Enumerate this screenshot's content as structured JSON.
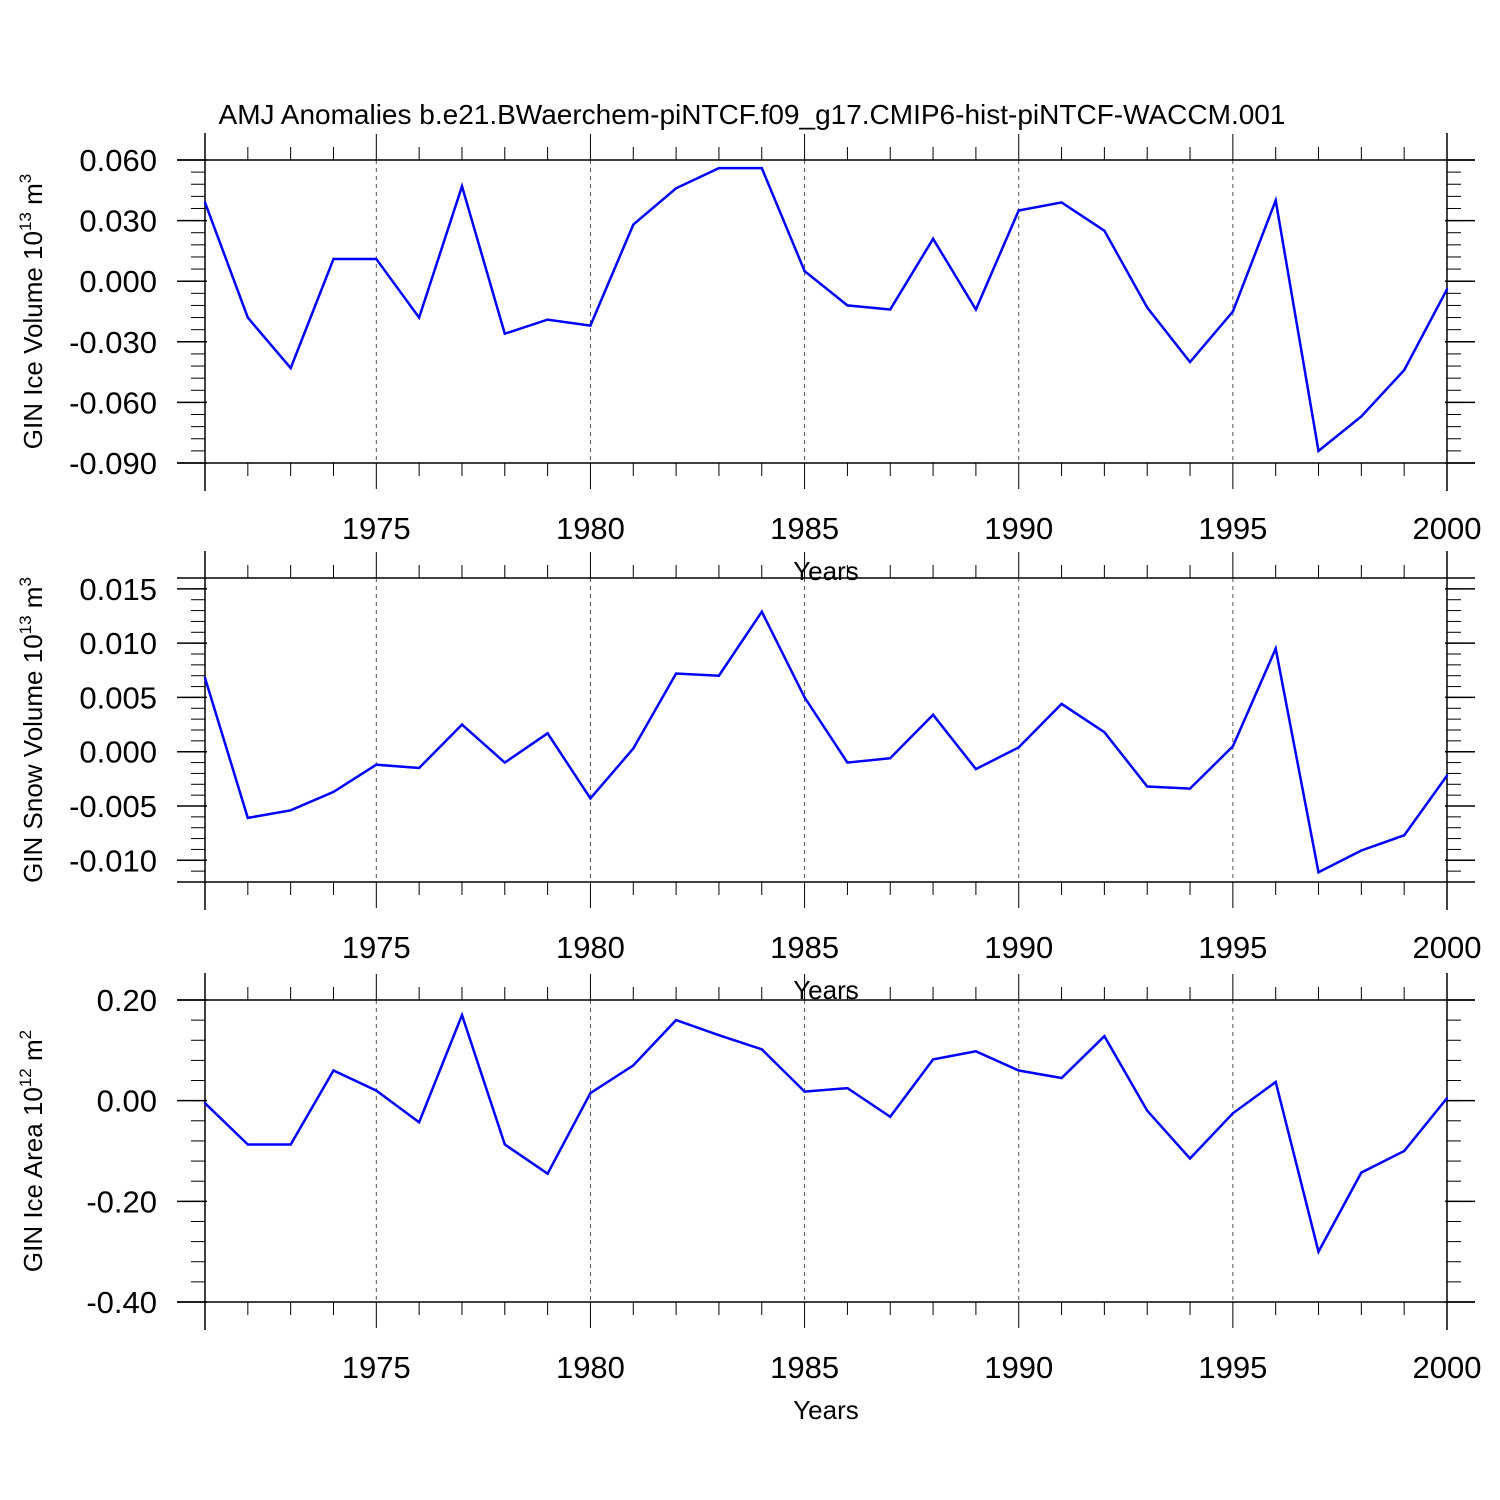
{
  "title": "AMJ Anomalies b.e21.BWaerchem-piNTCF.f09_g17.CMIP6-hist-piNTCF-WACCM.001",
  "colors": {
    "line": "#0000ff",
    "axis": "#000000",
    "grid": "#555555"
  },
  "chart_data": [
    {
      "type": "line",
      "ylabel": "GIN Ice Volume 10",
      "ylabel_exp": "13",
      "ylabel_unit": " m",
      "ylabel_unit_exp": "3",
      "xlabel": "Years",
      "xlim": [
        1971,
        2000
      ],
      "ylim": [
        -0.09,
        0.06
      ],
      "yticks": [
        0.06,
        0.03,
        0.0,
        -0.03,
        -0.06,
        -0.09
      ],
      "ytick_labels": [
        "0.060",
        "0.030",
        "0.000",
        "-0.030",
        "-0.060",
        "-0.090"
      ],
      "xticks": [
        1975,
        1980,
        1985,
        1990,
        1995,
        2000
      ],
      "xtick_labels": [
        "1975",
        "1980",
        "1985",
        "1990",
        "1995",
        "2000"
      ],
      "x": [
        1971,
        1972,
        1973,
        1974,
        1975,
        1976,
        1977,
        1978,
        1979,
        1980,
        1981,
        1982,
        1983,
        1984,
        1985,
        1986,
        1987,
        1988,
        1989,
        1990,
        1991,
        1992,
        1993,
        1994,
        1995,
        1996,
        1997,
        1998,
        1999,
        2000
      ],
      "values": [
        0.039,
        -0.018,
        -0.043,
        0.011,
        0.011,
        -0.018,
        0.047,
        -0.026,
        -0.019,
        -0.022,
        0.028,
        0.046,
        0.056,
        0.056,
        0.005,
        -0.012,
        -0.014,
        0.021,
        -0.014,
        0.035,
        0.039,
        0.025,
        -0.013,
        -0.04,
        -0.015,
        0.04,
        -0.084,
        -0.067,
        -0.044,
        -0.004
      ]
    },
    {
      "type": "line",
      "ylabel": "GIN Snow Volume 10",
      "ylabel_exp": "13",
      "ylabel_unit": " m",
      "ylabel_unit_exp": "3",
      "xlabel": "Years",
      "xlim": [
        1971,
        2000
      ],
      "ylim": [
        -0.012,
        0.016
      ],
      "yticks": [
        0.015,
        0.01,
        0.005,
        0.0,
        -0.005,
        -0.01
      ],
      "ytick_labels": [
        "0.015",
        "0.010",
        "0.005",
        "0.000",
        "-0.005",
        "-0.010"
      ],
      "xticks": [
        1975,
        1980,
        1985,
        1990,
        1995,
        2000
      ],
      "xtick_labels": [
        "1975",
        "1980",
        "1985",
        "1990",
        "1995",
        "2000"
      ],
      "x": [
        1971,
        1972,
        1973,
        1974,
        1975,
        1976,
        1977,
        1978,
        1979,
        1980,
        1981,
        1982,
        1983,
        1984,
        1985,
        1986,
        1987,
        1988,
        1989,
        1990,
        1991,
        1992,
        1993,
        1994,
        1995,
        1996,
        1997,
        1998,
        1999,
        2000
      ],
      "values": [
        0.0068,
        -0.0061,
        -0.0054,
        -0.0037,
        -0.0012,
        -0.0015,
        0.0025,
        -0.001,
        0.0017,
        -0.0043,
        0.0003,
        0.0072,
        0.007,
        0.0129,
        0.005,
        -0.001,
        -0.0006,
        0.0034,
        -0.0016,
        0.0004,
        0.0044,
        0.0018,
        -0.0032,
        -0.0034,
        0.0005,
        0.0095,
        -0.0111,
        -0.0091,
        -0.0077,
        -0.0022
      ]
    },
    {
      "type": "line",
      "ylabel": "GIN Ice Area 10",
      "ylabel_exp": "12",
      "ylabel_unit": " m",
      "ylabel_unit_exp": "2",
      "xlabel": "Years",
      "xlim": [
        1971,
        2000
      ],
      "ylim": [
        -0.4,
        0.2
      ],
      "yticks": [
        0.2,
        0.0,
        -0.2,
        -0.4
      ],
      "ytick_labels": [
        "0.20",
        "0.00",
        "-0.20",
        "-0.40"
      ],
      "xticks": [
        1975,
        1980,
        1985,
        1990,
        1995,
        2000
      ],
      "xtick_labels": [
        "1975",
        "1980",
        "1985",
        "1990",
        "1995",
        "2000"
      ],
      "x": [
        1971,
        1972,
        1973,
        1974,
        1975,
        1976,
        1977,
        1978,
        1979,
        1980,
        1981,
        1982,
        1983,
        1984,
        1985,
        1986,
        1987,
        1988,
        1989,
        1990,
        1991,
        1992,
        1993,
        1994,
        1995,
        1996,
        1997,
        1998,
        1999,
        2000
      ],
      "values": [
        -0.005,
        -0.087,
        -0.087,
        0.06,
        0.02,
        -0.043,
        0.17,
        -0.087,
        -0.145,
        0.015,
        0.07,
        0.16,
        0.13,
        0.102,
        0.018,
        0.025,
        -0.032,
        0.082,
        0.098,
        0.06,
        0.045,
        0.128,
        -0.02,
        -0.115,
        -0.025,
        0.037,
        -0.3,
        -0.143,
        -0.1,
        0.005
      ]
    }
  ]
}
